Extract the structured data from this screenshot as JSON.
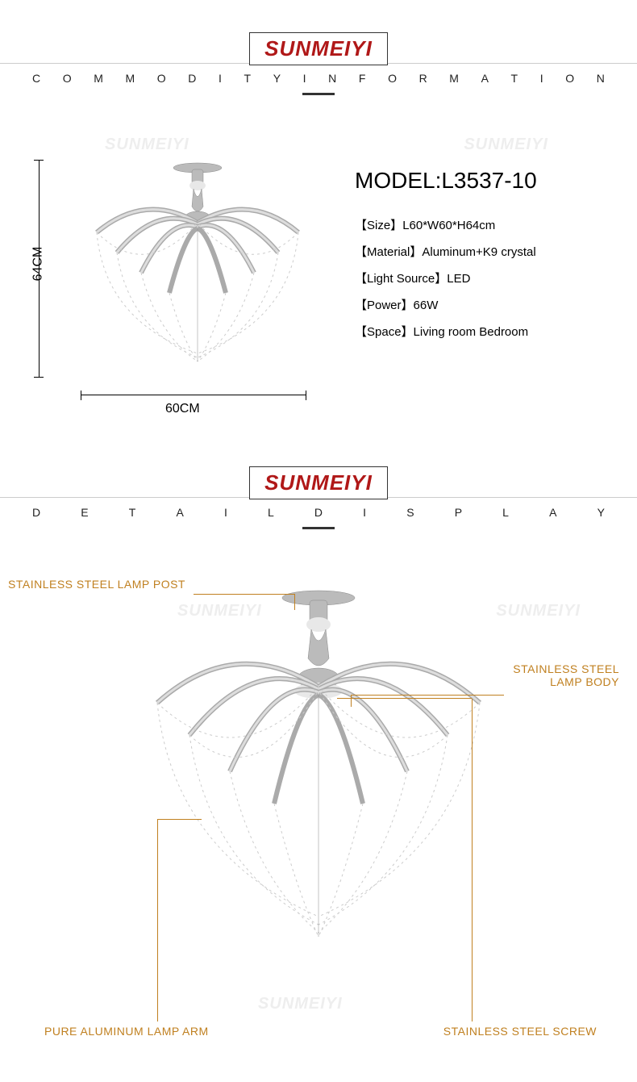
{
  "brand": "SUNMEIYI",
  "section1": {
    "letters": [
      "C",
      "O",
      "M",
      "M",
      "O",
      "D",
      "I",
      "T",
      "Y",
      "I",
      "N",
      "F",
      "O",
      "R",
      "M",
      "A",
      "T",
      "I",
      "O",
      "N"
    ]
  },
  "section2": {
    "letters": [
      "D",
      "E",
      "T",
      "A",
      "I",
      "L",
      "D",
      "I",
      "S",
      "P",
      "L",
      "A",
      "Y"
    ]
  },
  "dimensions": {
    "height_label": "64CM",
    "width_label": "60CM"
  },
  "model": {
    "title": "MODEL:L3537-10",
    "specs": [
      {
        "label": "【Size】",
        "value": "L60*W60*H64cm"
      },
      {
        "label": "【Material】",
        "value": "Aluminum+K9 crystal"
      },
      {
        "label": "【Light Source】",
        "value": "LED"
      },
      {
        "label": "【Power】",
        "value": "66W"
      },
      {
        "label": "【Space】",
        "value": "Living room Bedroom"
      }
    ]
  },
  "callouts": {
    "post": "STAINLESS STEEL LAMP POST",
    "body": {
      "l1": "STAINLESS STEEL",
      "l2": "LAMP BODY"
    },
    "arm": "PURE ALUMINUM LAMP ARM",
    "screw": "STAINLESS STEEL SCREW"
  },
  "colors": {
    "brand_red": "#b01818",
    "callout_gold": "#c08020",
    "bg": "#ffffff"
  }
}
